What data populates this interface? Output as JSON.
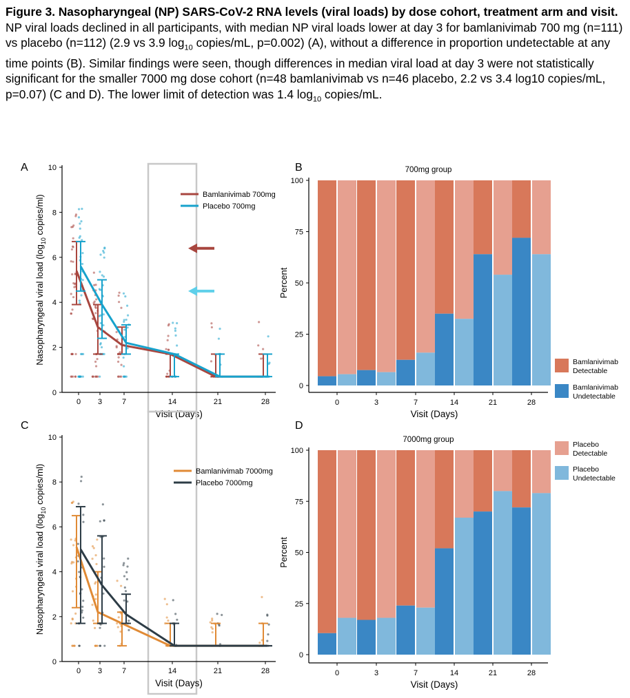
{
  "caption": {
    "bold": "Figure 3. Nasopharyngeal (NP) SARS-CoV-2 RNA levels (viral loads) by dose cohort, treatment arm and visit.",
    "p1": "  NP viral loads declined in all participants, with median NP viral loads lower at day 3 for bamlanivimab 700 mg (n=111) vs placebo (n=112) (2.9 vs 3.9 log",
    "sub1": "10",
    "p2": " copies/mL, p=0.002) (A), without a difference in proportion undetectable at any time points (B). Similar findings were seen, though differences in median viral load at day 3 were not statistically significant for the smaller 7000 mg dose cohort (n=48 bamlanivimab vs n=46 placebo, 2.2 vs 3.4 log10 copies/mL, p=0.07) (C and D). The lower limit of detection was 1.4 log",
    "sub2": "10",
    "p3": " copies/mL."
  },
  "colors": {
    "bam700": "#a8463f",
    "pla700": "#17a2cc",
    "bam7000": "#e08a35",
    "pla7000": "#2d3c46",
    "bam_detect": "#d8785a",
    "pla_detect": "#e6a090",
    "bam_undetect": "#3a87c5",
    "pla_undetect": "#80b8dc",
    "highlight_box": "#c8c8c8"
  },
  "chart_data": [
    {
      "panel": "A",
      "type": "line",
      "title": "",
      "xlabel": "Visit (Days)",
      "ylabel_pre": "Nasopharyngeal viral load (log",
      "ylabel_sub": "10",
      "ylabel_post": " copies/ml)",
      "x": [
        0,
        3,
        7,
        14,
        21,
        28
      ],
      "x_ticks": [
        "0",
        "3",
        "7",
        "14",
        "21",
        "28"
      ],
      "y_ticks": [
        "0",
        "2",
        "4",
        "6",
        "8",
        "10"
      ],
      "ylim": [
        0,
        10
      ],
      "legend_position": "top-right",
      "highlight_visit": 14,
      "arrows_y": [
        6.4,
        4.5
      ],
      "series": [
        {
          "name": "Bamlanivimab 700mg",
          "median": [
            5.4,
            2.9,
            2.1,
            1.7,
            0.7,
            0.7
          ],
          "q1": [
            3.9,
            1.7,
            1.7,
            0.7,
            0.7,
            0.7
          ],
          "q3": [
            6.7,
            3.9,
            2.9,
            1.7,
            1.7,
            1.7
          ]
        },
        {
          "name": "Placebo 700mg",
          "median": [
            5.6,
            3.9,
            2.2,
            1.7,
            0.7,
            0.7
          ],
          "q1": [
            4.5,
            2.4,
            1.7,
            0.7,
            0.7,
            0.7
          ],
          "q3": [
            6.7,
            5.0,
            3.0,
            1.7,
            1.7,
            1.7
          ]
        }
      ]
    },
    {
      "panel": "B",
      "type": "bar",
      "title": "700mg group",
      "xlabel": "Visit (Days)",
      "ylabel": "Percent",
      "categories": [
        "0",
        "3",
        "7",
        "14",
        "21",
        "28"
      ],
      "y_ticks": [
        "0",
        "25",
        "50",
        "75",
        "100"
      ],
      "ylim": [
        0,
        100
      ],
      "series": [
        {
          "name": "Bamlanivimab Undetectable",
          "values": [
            4.5,
            7.5,
            12.5,
            35,
            64,
            72
          ]
        },
        {
          "name": "Placebo Undetectable",
          "values": [
            5.5,
            6.5,
            16,
            32.5,
            54,
            64
          ]
        }
      ]
    },
    {
      "panel": "C",
      "type": "line",
      "title": "",
      "xlabel": "Visit (Days)",
      "ylabel_pre": "Nasopharyngeal viral load (log",
      "ylabel_sub": "10",
      "ylabel_post": " copies/ml)",
      "x": [
        0,
        3,
        7,
        14,
        21,
        28
      ],
      "x_ticks": [
        "0",
        "3",
        "7",
        "14",
        "21",
        "28"
      ],
      "y_ticks": [
        "0",
        "2",
        "4",
        "6",
        "8",
        "10"
      ],
      "ylim": [
        0,
        10
      ],
      "legend_position": "top-right",
      "highlight_visit": 14,
      "series": [
        {
          "name": "Bamlanivimab 7000mg",
          "median": [
            5.1,
            2.2,
            1.7,
            0.7,
            0.7,
            0.7
          ],
          "q1": [
            2.4,
            1.7,
            0.7,
            0.7,
            0.7,
            0.7
          ],
          "q3": [
            6.5,
            4.0,
            2.2,
            1.7,
            1.7,
            1.7
          ]
        },
        {
          "name": "Placebo 7000mg",
          "median": [
            5.0,
            3.4,
            2.1,
            0.7,
            0.7,
            0.7
          ],
          "q1": [
            1.7,
            1.7,
            1.7,
            0.7,
            0.7,
            0.7
          ],
          "q3": [
            6.9,
            5.6,
            3.0,
            1.7,
            0.7,
            0.7
          ]
        }
      ]
    },
    {
      "panel": "D",
      "type": "bar",
      "title": "7000mg group",
      "xlabel": "Visit (Days)",
      "ylabel": "Percent",
      "categories": [
        "0",
        "3",
        "7",
        "14",
        "21",
        "28"
      ],
      "y_ticks": [
        "0",
        "25",
        "50",
        "75",
        "100"
      ],
      "ylim": [
        0,
        100
      ],
      "series": [
        {
          "name": "Bamlanivimab Undetectable",
          "values": [
            10.5,
            17,
            24,
            52,
            70,
            72
          ]
        },
        {
          "name": "Placebo Undetectable",
          "values": [
            18,
            18,
            23,
            67,
            80,
            79
          ]
        }
      ]
    }
  ],
  "legend_right": {
    "bam_detect": [
      "Bamlanivimab",
      "Detectable"
    ],
    "bam_undetect": [
      "Bamlanivimab",
      "Undetectable"
    ],
    "pla_detect": [
      "Placebo",
      "Detectable"
    ],
    "pla_undetect": [
      "Placebo",
      "Undetectable"
    ]
  }
}
